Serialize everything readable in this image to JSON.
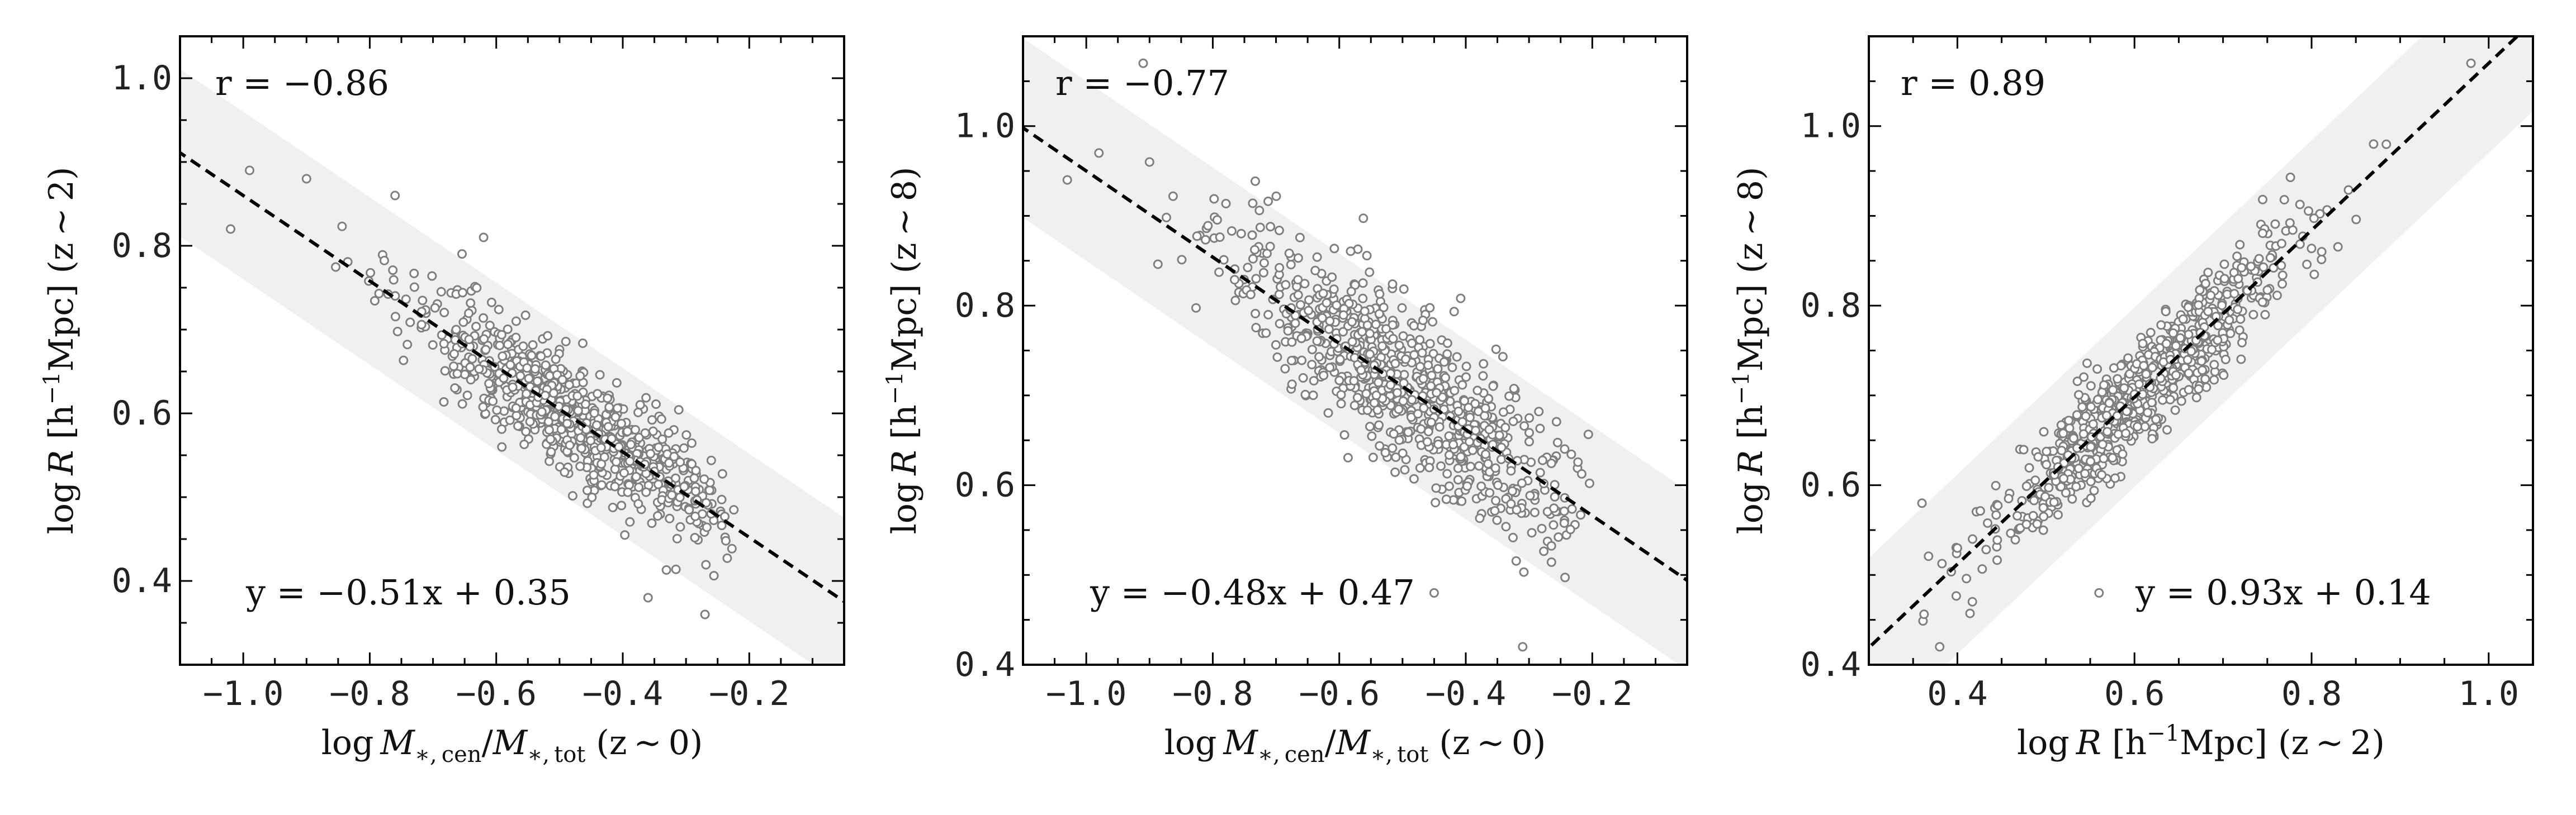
{
  "chart_data": [
    {
      "type": "scatter",
      "xlim": [
        -1.1,
        -0.05
      ],
      "ylim": [
        0.3,
        1.05
      ],
      "xticks": [
        -1.0,
        -0.8,
        -0.6,
        -0.4,
        -0.2
      ],
      "yticks": [
        0.4,
        0.6,
        0.8,
        1.0
      ],
      "xtick_labels": [
        "−1.0",
        "−0.8",
        "−0.6",
        "−0.4",
        "−0.2"
      ],
      "ytick_labels": [
        "0.4",
        "0.6",
        "0.8",
        "1.0"
      ],
      "xlabel_parts": [
        "log ",
        "M",
        "∗, cen",
        "/",
        "M",
        "∗, tot",
        " (z ∼ 0)"
      ],
      "ylabel_parts": [
        "log ",
        "R",
        " [h",
        "−1",
        "Mpc] (z ∼ 2)"
      ],
      "corr_label": "r = −0.86",
      "fit_label": "y = −0.51x + 0.35",
      "fit": {
        "slope": -0.51,
        "intercept": 0.35,
        "band_halfwidth": 0.1
      },
      "cloud": {
        "x_center": -0.47,
        "x_spread": 0.13,
        "x_min": -1.02,
        "x_max": -0.22,
        "scatter": 0.035,
        "n": 800
      },
      "outliers": [
        [
          -1.02,
          0.82
        ],
        [
          -0.99,
          0.89
        ],
        [
          -0.9,
          0.88
        ],
        [
          -0.76,
          0.86
        ],
        [
          -0.62,
          0.81
        ],
        [
          -0.27,
          0.36
        ],
        [
          -0.36,
          0.38
        ]
      ],
      "grid": false
    },
    {
      "type": "scatter",
      "xlim": [
        -1.1,
        -0.05
      ],
      "ylim": [
        0.4,
        1.1
      ],
      "xticks": [
        -1.0,
        -0.8,
        -0.6,
        -0.4,
        -0.2
      ],
      "yticks": [
        0.4,
        0.6,
        0.8,
        1.0
      ],
      "xtick_labels": [
        "−1.0",
        "−0.8",
        "−0.6",
        "−0.4",
        "−0.2"
      ],
      "ytick_labels": [
        "0.4",
        "0.6",
        "0.8",
        "1.0"
      ],
      "xlabel_parts": [
        "log ",
        "M",
        "∗, cen",
        "/",
        "M",
        "∗, tot",
        " (z ∼ 0)"
      ],
      "ylabel_parts": [
        "log ",
        "R",
        " [h",
        "−1",
        "Mpc] (z ∼ 8)"
      ],
      "corr_label": "r = −0.77",
      "fit_label": "y = −0.48x + 0.47",
      "fit": {
        "slope": -0.48,
        "intercept": 0.47,
        "band_halfwidth": 0.1
      },
      "cloud": {
        "x_center": -0.5,
        "x_spread": 0.14,
        "x_min": -0.98,
        "x_max": -0.2,
        "scatter": 0.045,
        "n": 800
      },
      "outliers": [
        [
          -1.03,
          0.94
        ],
        [
          -0.98,
          0.97
        ],
        [
          -0.91,
          1.07
        ],
        [
          -0.9,
          0.96
        ],
        [
          -0.45,
          0.48
        ],
        [
          -0.31,
          0.42
        ]
      ],
      "grid": false
    },
    {
      "type": "scatter",
      "xlim": [
        0.3,
        1.05
      ],
      "ylim": [
        0.4,
        1.1
      ],
      "xticks": [
        0.4,
        0.6,
        0.8,
        1.0
      ],
      "yticks": [
        0.4,
        0.6,
        0.8,
        1.0
      ],
      "xtick_labels": [
        "0.4",
        "0.6",
        "0.8",
        "1.0"
      ],
      "ytick_labels": [
        "0.4",
        "0.6",
        "0.8",
        "1.0"
      ],
      "xlabel_parts": [
        "log ",
        "R",
        " [h",
        "−1",
        "Mpc] (z ∼ 2)"
      ],
      "ylabel_parts": [
        "log ",
        "R",
        " [h",
        "−1",
        "Mpc] (z ∼ 8)"
      ],
      "corr_label": "r = 0.89",
      "fit_label": "y = 0.93x + 0.14",
      "fit": {
        "slope": 0.93,
        "intercept": 0.14,
        "band_halfwidth": 0.1
      },
      "cloud": {
        "x_center": 0.61,
        "x_spread": 0.08,
        "x_min": 0.36,
        "x_max": 0.99,
        "scatter": 0.03,
        "n": 800
      },
      "outliers": [
        [
          0.36,
          0.58
        ],
        [
          0.38,
          0.42
        ],
        [
          0.4,
          0.53
        ],
        [
          0.56,
          0.48
        ],
        [
          0.98,
          1.07
        ],
        [
          0.87,
          0.98
        ]
      ],
      "grid": false
    }
  ]
}
